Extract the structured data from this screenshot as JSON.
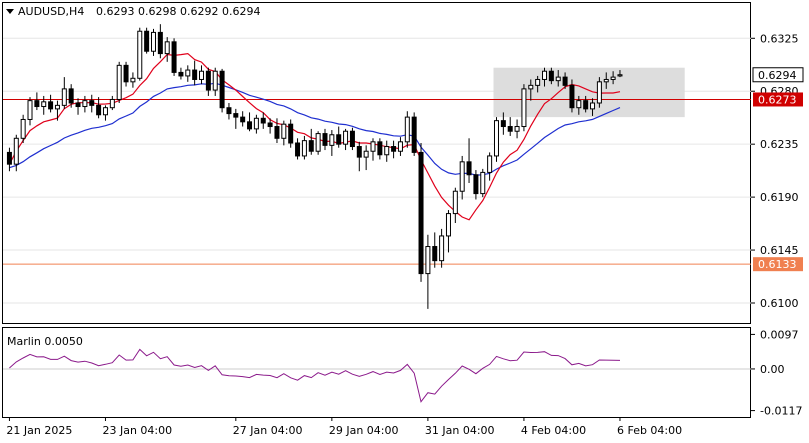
{
  "header": {
    "symbol": "AUDUSD,H4",
    "ohlc": "0.6293 0.6298 0.6292 0.6294",
    "menu_icon": "triangle-down-icon"
  },
  "colors": {
    "candle_up": "#ffffff",
    "candle_down": "#000000",
    "outline": "#000000",
    "ma_fast": "#e0001b",
    "ma_slow": "#1f2fd0",
    "resistance_line": "#d00000",
    "support_line": "#f08050",
    "rect_fill": "#d9d9d9",
    "grid": "#e6e6e6",
    "oscillator": "#8b1a8b",
    "current_price_bg": "#ffffff",
    "level_label_bg_1": "#e01010",
    "level_label_bg_2": "#f08050"
  },
  "chart_data": [
    {
      "type": "candlestick",
      "title": "AUDUSD,H4",
      "ylim": [
        0.6083,
        0.6355
      ],
      "y_ticks": [
        "0.6325",
        "0.6280",
        "0.6235",
        "0.6190",
        "0.6145",
        "0.6100"
      ],
      "x_ticks": [
        "21 Jan 2025",
        "23 Jan 04:00",
        "27 Jan 04:00",
        "29 Jan 04:00",
        "31 Jan 04:00",
        "4 Feb 04:00",
        "6 Feb 04:00"
      ],
      "current_price_label": "0.6294",
      "levels": [
        {
          "value": 0.6273,
          "label": "0.6273",
          "color": "#d00000"
        },
        {
          "value": 0.6133,
          "label": "0.6133",
          "color": "#f08050"
        }
      ],
      "zone": {
        "from_bar": 71,
        "to_bar": 98,
        "low": 0.6258,
        "high": 0.63
      },
      "candles": [
        [
          0.6228,
          0.6232,
          0.6212,
          0.6218
        ],
        [
          0.6218,
          0.6243,
          0.6212,
          0.624
        ],
        [
          0.624,
          0.626,
          0.6236,
          0.6256
        ],
        [
          0.6256,
          0.6275,
          0.6251,
          0.6272
        ],
        [
          0.6272,
          0.6279,
          0.6264,
          0.6267
        ],
        [
          0.6267,
          0.6276,
          0.626,
          0.6271
        ],
        [
          0.6271,
          0.6277,
          0.6262,
          0.6265
        ],
        [
          0.6265,
          0.6272,
          0.6255,
          0.6268
        ],
        [
          0.6268,
          0.6292,
          0.6265,
          0.6282
        ],
        [
          0.6282,
          0.6286,
          0.6266,
          0.627
        ],
        [
          0.627,
          0.6274,
          0.626,
          0.6267
        ],
        [
          0.6267,
          0.6276,
          0.6262,
          0.6272
        ],
        [
          0.6272,
          0.6277,
          0.6262,
          0.6268
        ],
        [
          0.6268,
          0.6275,
          0.6257,
          0.626
        ],
        [
          0.626,
          0.6268,
          0.6255,
          0.6266
        ],
        [
          0.6266,
          0.6276,
          0.6264,
          0.6273
        ],
        [
          0.6273,
          0.6305,
          0.627,
          0.6302
        ],
        [
          0.6302,
          0.6305,
          0.6284,
          0.6288
        ],
        [
          0.6288,
          0.6296,
          0.6283,
          0.6291
        ],
        [
          0.6291,
          0.6334,
          0.6289,
          0.6331
        ],
        [
          0.6331,
          0.6334,
          0.6312,
          0.6314
        ],
        [
          0.6314,
          0.6333,
          0.631,
          0.633
        ],
        [
          0.633,
          0.6337,
          0.6308,
          0.6312
        ],
        [
          0.6312,
          0.6326,
          0.6305,
          0.6322
        ],
        [
          0.6322,
          0.6325,
          0.6293,
          0.6296
        ],
        [
          0.6296,
          0.63,
          0.629,
          0.6293
        ],
        [
          0.6293,
          0.6302,
          0.6288,
          0.6298
        ],
        [
          0.6298,
          0.6306,
          0.6285,
          0.629
        ],
        [
          0.629,
          0.6302,
          0.6286,
          0.6297
        ],
        [
          0.6297,
          0.63,
          0.6276,
          0.6281
        ],
        [
          0.6281,
          0.63,
          0.6276,
          0.6297
        ],
        [
          0.6297,
          0.6299,
          0.6262,
          0.6266
        ],
        [
          0.6266,
          0.627,
          0.6256,
          0.6261
        ],
        [
          0.6261,
          0.6265,
          0.6248,
          0.6258
        ],
        [
          0.6258,
          0.6263,
          0.625,
          0.6254
        ],
        [
          0.6254,
          0.6262,
          0.6246,
          0.6248
        ],
        [
          0.6248,
          0.626,
          0.6244,
          0.6257
        ],
        [
          0.6257,
          0.6262,
          0.6248,
          0.6253
        ],
        [
          0.6253,
          0.6257,
          0.6244,
          0.625
        ],
        [
          0.625,
          0.6257,
          0.6236,
          0.624
        ],
        [
          0.624,
          0.6255,
          0.6234,
          0.6252
        ],
        [
          0.6252,
          0.6256,
          0.6232,
          0.6236
        ],
        [
          0.6236,
          0.624,
          0.6222,
          0.6225
        ],
        [
          0.6225,
          0.6242,
          0.6222,
          0.6238
        ],
        [
          0.6238,
          0.6248,
          0.6226,
          0.6229
        ],
        [
          0.6229,
          0.6246,
          0.6226,
          0.6244
        ],
        [
          0.6244,
          0.6248,
          0.623,
          0.6234
        ],
        [
          0.6234,
          0.6247,
          0.6225,
          0.6243
        ],
        [
          0.6243,
          0.625,
          0.6232,
          0.6235
        ],
        [
          0.6235,
          0.6248,
          0.623,
          0.6246
        ],
        [
          0.6246,
          0.6249,
          0.623,
          0.6233
        ],
        [
          0.6233,
          0.6237,
          0.6212,
          0.6224
        ],
        [
          0.6224,
          0.6234,
          0.6213,
          0.6229
        ],
        [
          0.6229,
          0.624,
          0.6221,
          0.6237
        ],
        [
          0.6237,
          0.624,
          0.6222,
          0.6226
        ],
        [
          0.6226,
          0.6238,
          0.622,
          0.6233
        ],
        [
          0.6233,
          0.6238,
          0.6223,
          0.6229
        ],
        [
          0.6229,
          0.6241,
          0.6225,
          0.6237
        ],
        [
          0.6237,
          0.6263,
          0.6232,
          0.6258
        ],
        [
          0.6258,
          0.6262,
          0.6225,
          0.6228
        ],
        [
          0.6228,
          0.6236,
          0.6118,
          0.6125
        ],
        [
          0.6125,
          0.6158,
          0.6095,
          0.6148
        ],
        [
          0.6148,
          0.616,
          0.613,
          0.6136
        ],
        [
          0.6136,
          0.6163,
          0.613,
          0.6157
        ],
        [
          0.6157,
          0.6179,
          0.6143,
          0.6176
        ],
        [
          0.6176,
          0.6198,
          0.6168,
          0.6195
        ],
        [
          0.6195,
          0.6225,
          0.6188,
          0.622
        ],
        [
          0.622,
          0.624,
          0.6202,
          0.6209
        ],
        [
          0.6209,
          0.6213,
          0.6188,
          0.6193
        ],
        [
          0.6193,
          0.6214,
          0.619,
          0.6211
        ],
        [
          0.6211,
          0.6228,
          0.6204,
          0.6225
        ],
        [
          0.6225,
          0.6258,
          0.622,
          0.6255
        ],
        [
          0.6255,
          0.6262,
          0.6243,
          0.625
        ],
        [
          0.625,
          0.6258,
          0.6242,
          0.6246
        ],
        [
          0.6246,
          0.6256,
          0.624,
          0.625
        ],
        [
          0.625,
          0.6286,
          0.6246,
          0.6282
        ],
        [
          0.6282,
          0.629,
          0.6272,
          0.6285
        ],
        [
          0.6285,
          0.6293,
          0.6279,
          0.629
        ],
        [
          0.629,
          0.63,
          0.6284,
          0.6297
        ],
        [
          0.6297,
          0.63,
          0.6286,
          0.6289
        ],
        [
          0.6289,
          0.6298,
          0.6284,
          0.6292
        ],
        [
          0.6292,
          0.6296,
          0.6282,
          0.6285
        ],
        [
          0.6285,
          0.629,
          0.6262,
          0.6266
        ],
        [
          0.6266,
          0.6276,
          0.626,
          0.6272
        ],
        [
          0.6272,
          0.6276,
          0.6262,
          0.6265
        ],
        [
          0.6265,
          0.6274,
          0.6259,
          0.627
        ],
        [
          0.627,
          0.6292,
          0.6266,
          0.6288
        ],
        [
          0.6288,
          0.6296,
          0.6282,
          0.629
        ],
        [
          0.629,
          0.6297,
          0.6286,
          0.6292
        ],
        [
          0.6293,
          0.6298,
          0.6292,
          0.6294
        ]
      ]
    },
    {
      "type": "line",
      "title": "Marlin 0.0050",
      "ylim": [
        -0.0135,
        0.0115
      ],
      "y_ticks": [
        "0.0097",
        "0.00",
        "-0.0117"
      ],
      "zero_line": 0.0
    }
  ]
}
